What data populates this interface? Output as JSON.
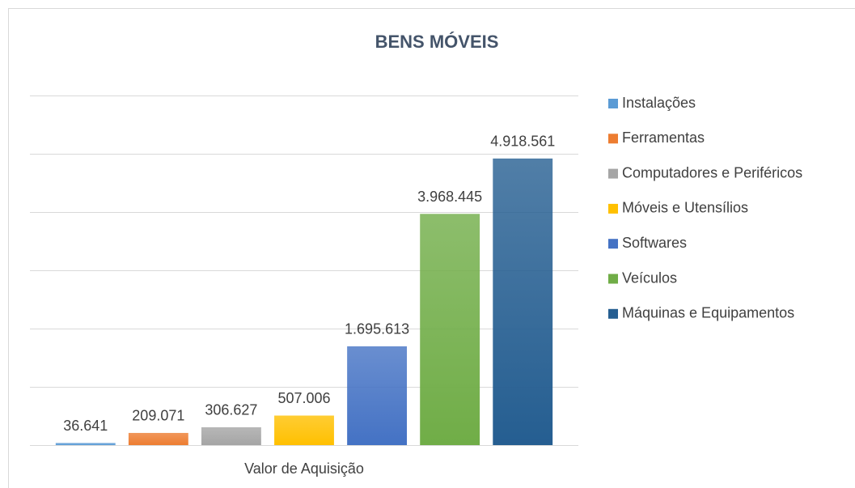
{
  "chart_data": {
    "type": "bar",
    "title": "BENS MÓVEIS",
    "categories": [
      "Valor de Aquisição"
    ],
    "series": [
      {
        "name": "Instalações",
        "color": "#5b9bd5",
        "values": [
          36641
        ],
        "value_labels": [
          "36.641"
        ]
      },
      {
        "name": "Ferramentas",
        "color": "#ed7d31",
        "values": [
          209071
        ],
        "value_labels": [
          "209.071"
        ]
      },
      {
        "name": "Computadores e Periféricos",
        "color": "#a5a5a5",
        "values": [
          306627
        ],
        "value_labels": [
          "306.627"
        ]
      },
      {
        "name": "Móveis e Utensílios",
        "color": "#ffc000",
        "values": [
          507006
        ],
        "value_labels": [
          "507.006"
        ]
      },
      {
        "name": "Softwares",
        "color": "#4472c4",
        "values": [
          1695613
        ],
        "value_labels": [
          "1.695.613"
        ]
      },
      {
        "name": "Veículos",
        "color": "#70ad47",
        "values": [
          3968445
        ],
        "value_labels": [
          "3.968.445"
        ]
      },
      {
        "name": "Máquinas e Equipamentos",
        "color": "#255e91",
        "values": [
          4918561
        ],
        "value_labels": [
          "4.918.561"
        ]
      }
    ],
    "ylim": [
      0,
      6000000
    ],
    "yticks": [
      0,
      1000000,
      2000000,
      3000000,
      4000000,
      5000000,
      6000000
    ],
    "grid": true,
    "legend": "right"
  }
}
